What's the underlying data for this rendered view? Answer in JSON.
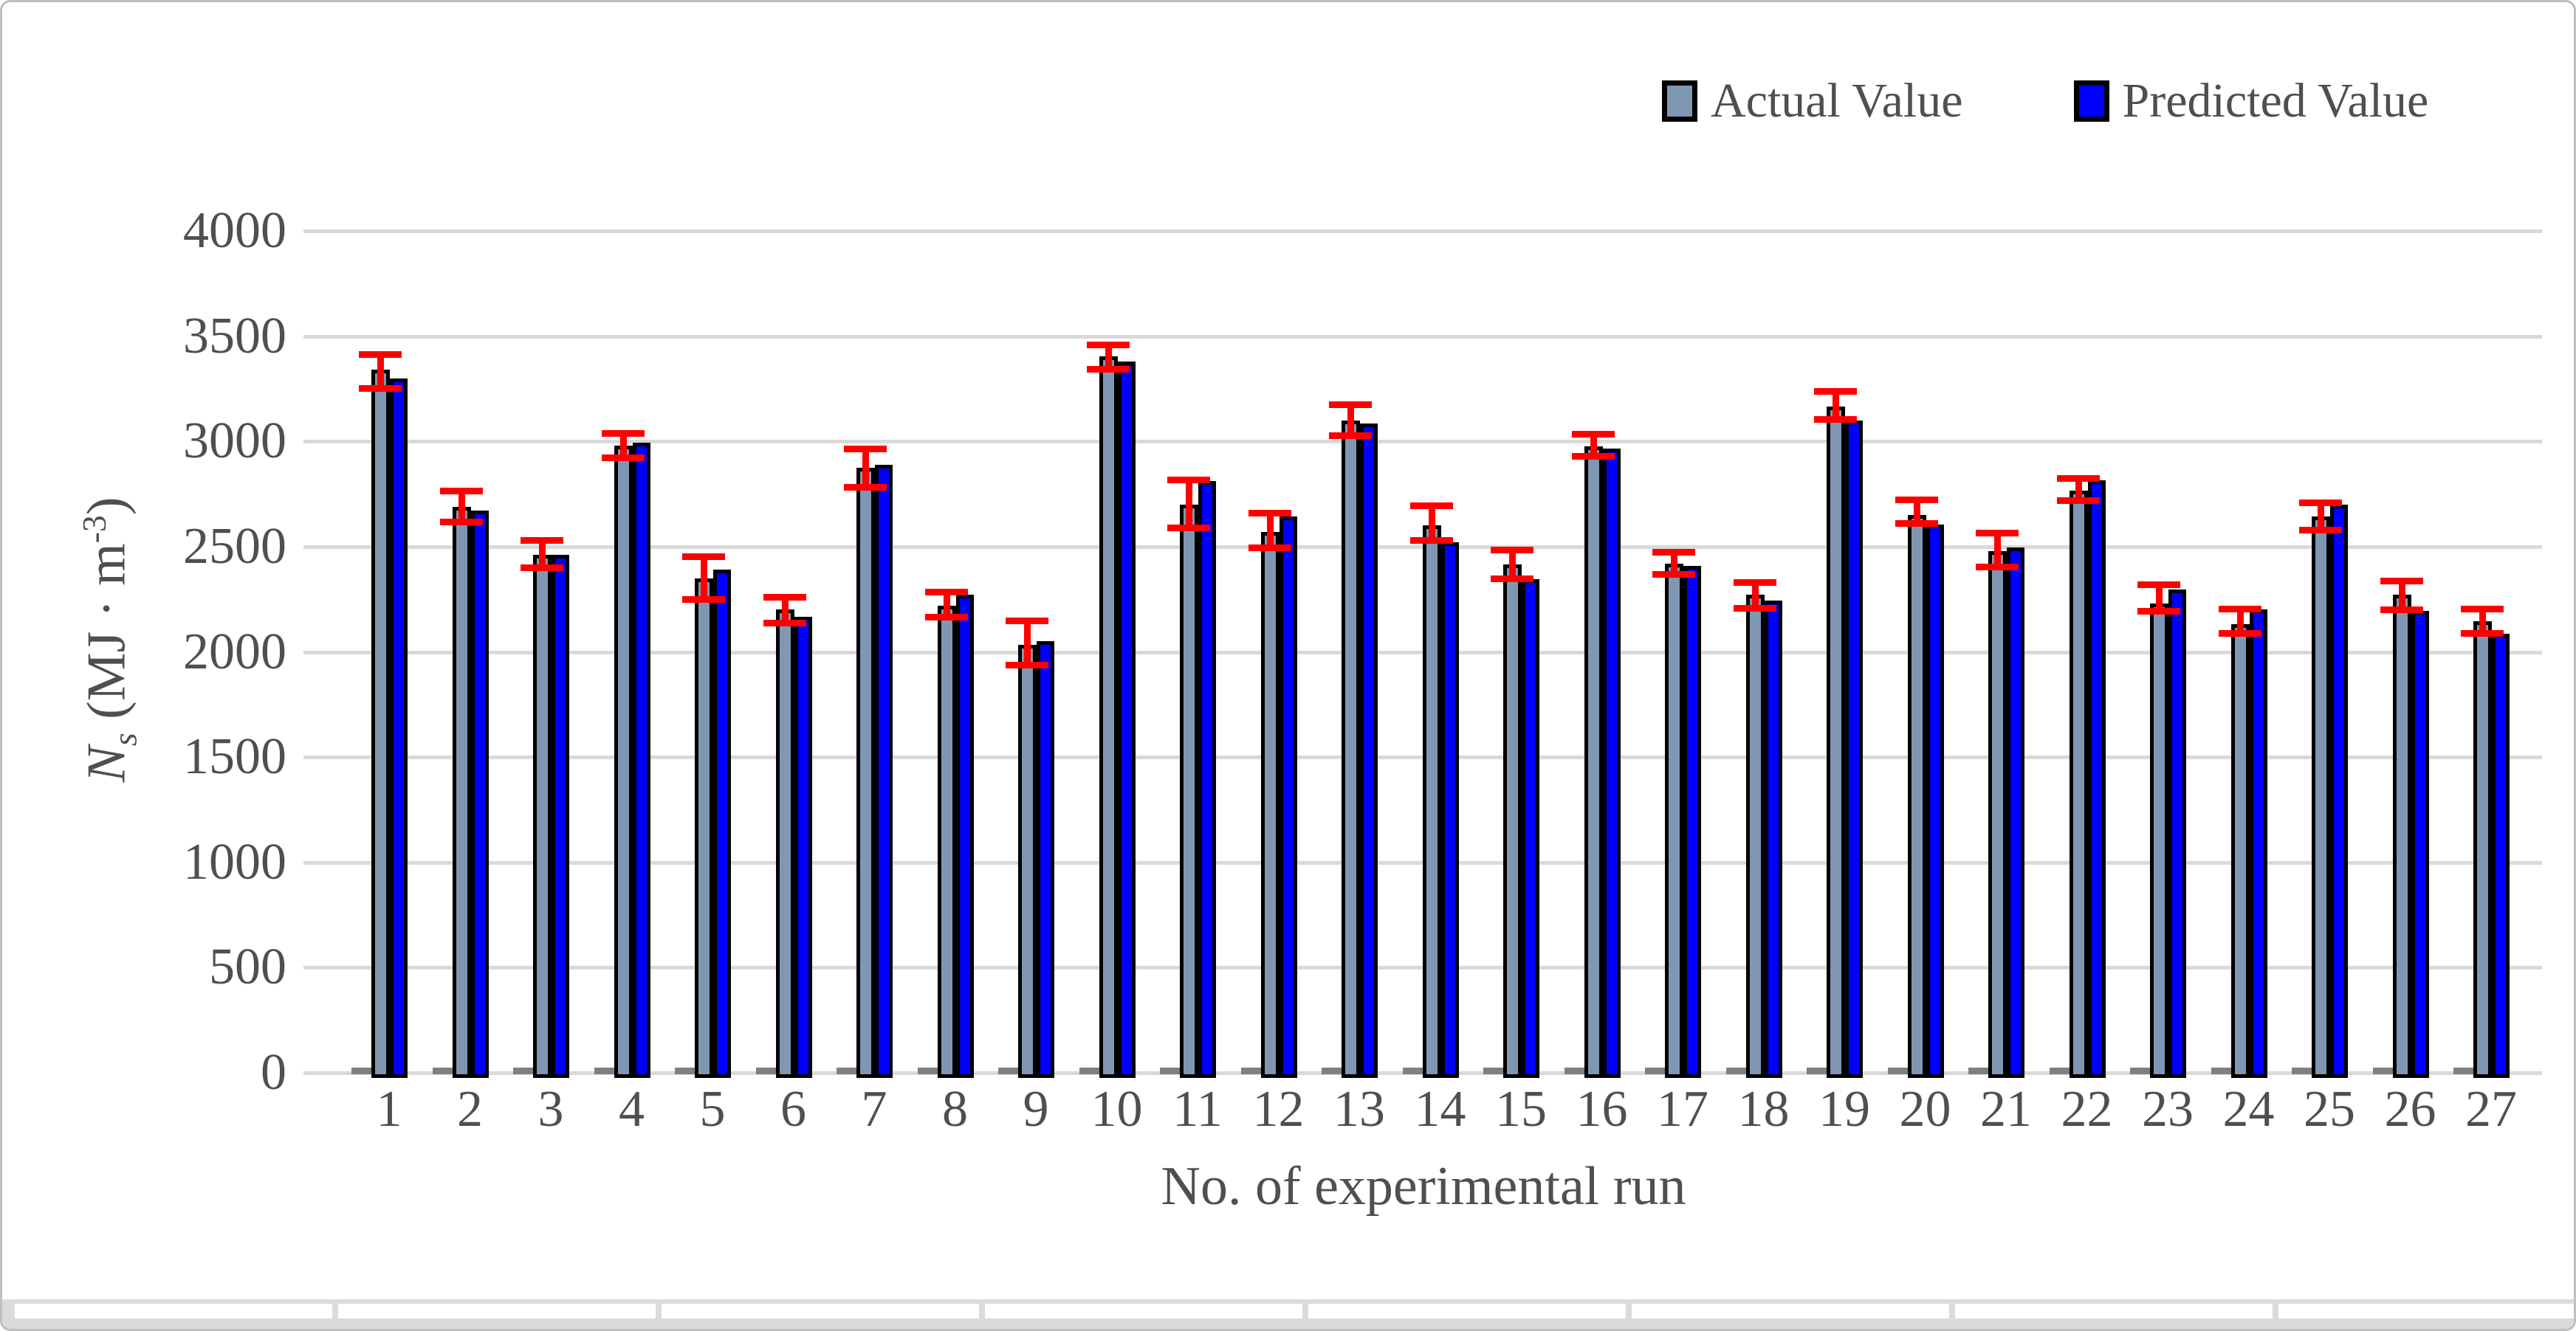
{
  "legend": {
    "items": [
      {
        "label": "Actual Value",
        "color": "#8097B3"
      },
      {
        "label": "Predicted Value",
        "color": "#0000FE"
      }
    ]
  },
  "chart_data": {
    "type": "bar",
    "title": "",
    "xlabel": "No. of experimental run",
    "ylabel": "Ns (MJ · m-3)",
    "ylabel_parts": {
      "n": "N",
      "s": "s",
      "mid": " (MJ · m",
      "sup": "-3",
      "end": ")"
    },
    "categories": [
      "1",
      "2",
      "3",
      "4",
      "5",
      "6",
      "7",
      "8",
      "9",
      "10",
      "11",
      "12",
      "13",
      "14",
      "15",
      "16",
      "17",
      "18",
      "19",
      "20",
      "21",
      "22",
      "23",
      "24",
      "25",
      "26",
      "27"
    ],
    "series": [
      {
        "name": "Actual Value",
        "color": "#8097B3",
        "values": [
          3340,
          2690,
          2460,
          2980,
          2350,
          2200,
          2875,
          2220,
          2035,
          3405,
          2700,
          2570,
          3100,
          2600,
          2415,
          2975,
          2420,
          2270,
          3165,
          2650,
          2480,
          2765,
          2230,
          2130,
          2645,
          2270,
          2145
        ]
      },
      {
        "name": "Predicted Value",
        "color": "#0000FE",
        "values": [
          3300,
          2670,
          2460,
          2995,
          2390,
          2165,
          2890,
          2270,
          2050,
          3380,
          2810,
          2645,
          3085,
          2520,
          2345,
          2965,
          2410,
          2245,
          3100,
          2605,
          2495,
          2815,
          2295,
          2200,
          2700,
          2195,
          2085
        ]
      }
    ],
    "error_bars": {
      "on_series": "Actual Value",
      "color": "#FF0000",
      "high": [
        3415,
        2765,
        2530,
        3040,
        2455,
        2260,
        2965,
        2285,
        2150,
        3460,
        2820,
        2660,
        3175,
        2695,
        2485,
        3035,
        2475,
        2330,
        3240,
        2725,
        2565,
        2825,
        2320,
        2205,
        2710,
        2340,
        2205
      ],
      "low": [
        3255,
        2620,
        2400,
        2925,
        2250,
        2140,
        2785,
        2165,
        1940,
        3345,
        2590,
        2495,
        3030,
        2530,
        2350,
        2930,
        2370,
        2210,
        3105,
        2610,
        2405,
        2720,
        2195,
        2090,
        2580,
        2200,
        2090
      ]
    },
    "y_axis": {
      "min": 0,
      "max": 4000,
      "step": 500,
      "ticks": [
        "0",
        "500",
        "1000",
        "1500",
        "2000",
        "2500",
        "3000",
        "3500",
        "4000"
      ]
    },
    "grid": true,
    "legend_position": "top-right",
    "bar_outline_color": "#000000",
    "gridline_color": "#D9D9D9"
  },
  "bottom_strip": {
    "visible": true,
    "cell_count": 8
  }
}
